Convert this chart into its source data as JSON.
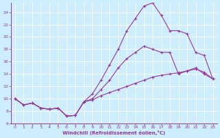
{
  "xlabel": "Windchill (Refroidissement éolien,°C)",
  "bg_color": "#cceeff",
  "line_color": "#993399",
  "grid_color": "#aaddcc",
  "xlim": [
    -0.5,
    23.5
  ],
  "ylim": [
    6,
    25.5
  ],
  "xticks": [
    0,
    1,
    2,
    3,
    4,
    5,
    6,
    7,
    8,
    9,
    10,
    11,
    12,
    13,
    14,
    15,
    16,
    17,
    18,
    19,
    20,
    21,
    22,
    23
  ],
  "yticks": [
    6,
    8,
    10,
    12,
    14,
    16,
    18,
    20,
    22,
    24
  ],
  "series": [
    [
      10.0,
      9.0,
      9.3,
      8.5,
      8.3,
      8.5,
      7.2,
      7.3,
      9.5,
      9.8,
      10.5,
      11.0,
      11.5,
      12.0,
      12.5,
      13.0,
      13.5,
      13.8,
      14.0,
      14.2,
      14.5,
      14.8,
      14.3,
      13.2
    ],
    [
      10.0,
      9.0,
      9.3,
      8.5,
      8.3,
      8.5,
      7.2,
      7.3,
      9.5,
      10.0,
      11.5,
      13.0,
      15.0,
      16.5,
      17.5,
      18.5,
      18.0,
      17.5,
      17.5,
      14.0,
      14.5,
      15.0,
      14.0,
      13.2
    ],
    [
      10.0,
      9.0,
      9.3,
      8.5,
      8.3,
      8.5,
      7.2,
      7.3,
      9.5,
      10.8,
      13.0,
      15.5,
      18.0,
      21.0,
      23.0,
      25.0,
      25.5,
      23.5,
      21.0,
      21.0,
      20.5,
      17.5,
      17.0,
      13.2
    ]
  ]
}
